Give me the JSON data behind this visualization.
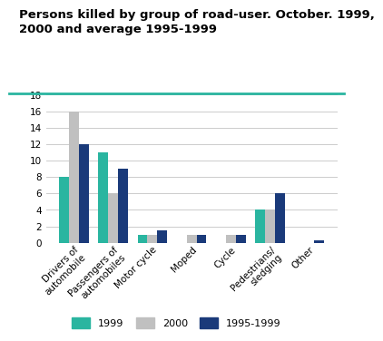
{
  "title": "Persons killed by group of road-user. October. 1999,\n2000 and average 1995-1999",
  "categories": [
    "Drivers of\nautomobile",
    "Passengers of\nautomobiles",
    "Motor cycle",
    "Moped",
    "Cycle",
    "Pedestrians/\nsledging",
    "Other"
  ],
  "series": {
    "1999": [
      8,
      11,
      1,
      0,
      0,
      4,
      0
    ],
    "2000": [
      16,
      6,
      1,
      1,
      1,
      4,
      0
    ],
    "1995-1999": [
      12,
      9,
      1.5,
      1,
      1,
      6,
      0.3
    ]
  },
  "colors": {
    "1999": "#2ab5a0",
    "2000": "#c0c0c0",
    "1995-1999": "#1a3a7a"
  },
  "ylim": [
    0,
    18
  ],
  "yticks": [
    0,
    2,
    4,
    6,
    8,
    10,
    12,
    14,
    16,
    18
  ],
  "bar_width": 0.25,
  "legend_labels": [
    "1999",
    "2000",
    "1995-1999"
  ],
  "title_fontsize": 9.5,
  "tick_fontsize": 7.5,
  "legend_fontsize": 8,
  "grid_color": "#cccccc",
  "title_color": "#000000",
  "bg_color": "#ffffff",
  "top_line_color": "#2ab5a0"
}
